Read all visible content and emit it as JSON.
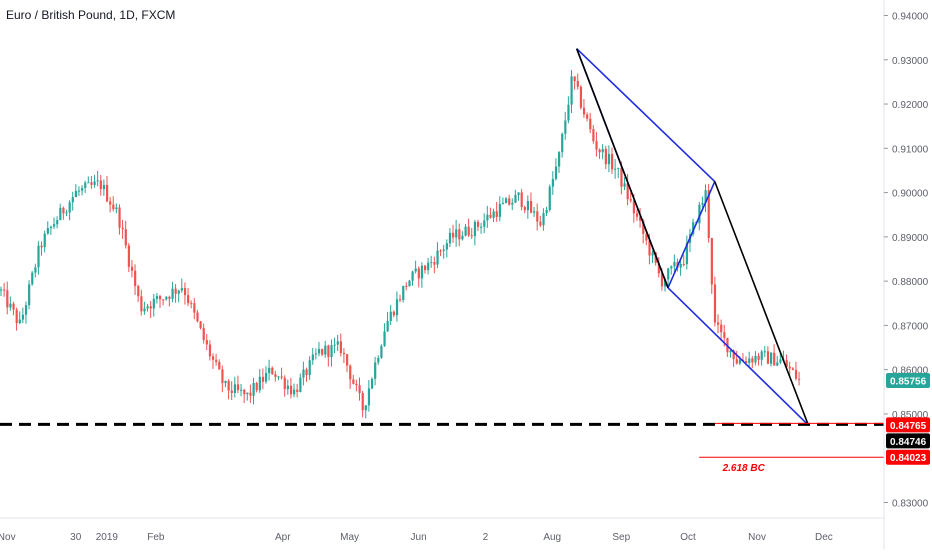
{
  "chart_data": {
    "type": "candlestick",
    "title": "Euro / British Pound, 1D, FXCM",
    "ylim": [
      0.8265,
      0.9435
    ],
    "y_ticks": [
      "0.94000",
      "0.93000",
      "0.92000",
      "0.91000",
      "0.90000",
      "0.89000",
      "0.88000",
      "0.87000",
      "0.86000",
      "0.85000",
      "0.83000"
    ],
    "x_ticks": [
      "Nov",
      "30",
      "2019",
      "Feb",
      "Apr",
      "May",
      "Jun",
      "2",
      "Aug",
      "Sep",
      "Oct",
      "Nov",
      "Dec"
    ],
    "colors": {
      "up": "#26a69a",
      "down": "#ef5350",
      "pattern_blue": "#1f2de0",
      "pattern_black": "#000000",
      "level_red": "#ff0000"
    },
    "price_path": [
      [
        "2018-11-26",
        0.878
      ],
      [
        "2018-12-05",
        0.87
      ],
      [
        "2018-12-14",
        0.888
      ],
      [
        "2018-12-20",
        0.893
      ],
      [
        "2018-12-30",
        0.9
      ],
      [
        "2019-01-10",
        0.902
      ],
      [
        "2019-01-18",
        0.895
      ],
      [
        "2019-01-28",
        0.874
      ],
      [
        "2019-02-06",
        0.876
      ],
      [
        "2019-02-16",
        0.879
      ],
      [
        "2019-02-26",
        0.866
      ],
      [
        "2019-03-07",
        0.856
      ],
      [
        "2019-03-17",
        0.854
      ],
      [
        "2019-03-28",
        0.86
      ],
      [
        "2019-04-07",
        0.855
      ],
      [
        "2019-04-18",
        0.864
      ],
      [
        "2019-04-28",
        0.865
      ],
      [
        "2019-05-08",
        0.851
      ],
      [
        "2019-05-18",
        0.87
      ],
      [
        "2019-05-28",
        0.88
      ],
      [
        "2019-06-07",
        0.884
      ],
      [
        "2019-06-17",
        0.89
      ],
      [
        "2019-06-27",
        0.892
      ],
      [
        "2019-07-07",
        0.896
      ],
      [
        "2019-07-17",
        0.899
      ],
      [
        "2019-07-27",
        0.893
      ],
      [
        "2019-08-04",
        0.908
      ],
      [
        "2019-08-10",
        0.926
      ],
      [
        "2019-08-20",
        0.911
      ],
      [
        "2019-08-30",
        0.905
      ],
      [
        "2019-09-09",
        0.893
      ],
      [
        "2019-09-19",
        0.88
      ],
      [
        "2019-09-29",
        0.885
      ],
      [
        "2019-10-05",
        0.895
      ],
      [
        "2019-10-09",
        0.9
      ],
      [
        "2019-10-13",
        0.87
      ],
      [
        "2019-10-23",
        0.862
      ],
      [
        "2019-11-02",
        0.863
      ],
      [
        "2019-11-12",
        0.862
      ],
      [
        "2019-11-20",
        0.8576
      ]
    ],
    "pattern": {
      "blue_legs": [
        [
          [
            "2019-08-12",
            0.9325
          ],
          [
            "2019-10-13",
            0.9025
          ]
        ],
        [
          [
            "2019-08-12",
            0.9325
          ],
          [
            "2019-09-22",
            0.8785
          ]
        ],
        [
          [
            "2019-09-22",
            0.8785
          ],
          [
            "2019-10-13",
            0.9025
          ]
        ],
        [
          [
            "2019-09-22",
            0.8785
          ],
          [
            "2019-11-24",
            0.8475
          ]
        ]
      ],
      "black_legs": [
        [
          [
            "2019-08-12",
            0.9325
          ],
          [
            "2019-09-22",
            0.8785
          ]
        ],
        [
          [
            "2019-10-13",
            0.9025
          ],
          [
            "2019-11-24",
            0.8475
          ]
        ]
      ]
    },
    "levels": [
      {
        "value": 0.84765,
        "label": "0.84765",
        "style": "dashed"
      },
      {
        "value": 0.84023,
        "label": "0.84023",
        "style": "solid",
        "annotation": "2.618 BC"
      }
    ],
    "price_tags": [
      {
        "label": "0.85756",
        "value": 0.85756,
        "color": "#26a69a"
      },
      {
        "label": "0.84765",
        "value": 0.84765,
        "color": "#ff0000"
      },
      {
        "label": "0.84746",
        "value": 0.84746,
        "color": "#000000"
      },
      {
        "label": "0.84023",
        "value": 0.84023,
        "color": "#ff0000"
      }
    ]
  }
}
